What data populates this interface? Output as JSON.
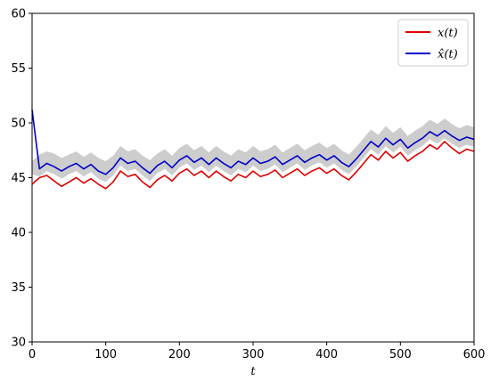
{
  "chart_data": {
    "type": "line",
    "title": "",
    "xlabel": "t",
    "ylabel": "",
    "xlim": [
      0,
      600
    ],
    "ylim": [
      30,
      60
    ],
    "xticks": [
      "0",
      "100",
      "200",
      "300",
      "400",
      "500",
      "600"
    ],
    "yticks": [
      "30",
      "35",
      "40",
      "45",
      "50",
      "55",
      "60"
    ],
    "grid": false,
    "legend_position": "top-right",
    "x": [
      0,
      10,
      20,
      30,
      40,
      50,
      60,
      70,
      80,
      90,
      100,
      110,
      120,
      130,
      140,
      150,
      160,
      170,
      180,
      190,
      200,
      210,
      220,
      230,
      240,
      250,
      260,
      270,
      280,
      290,
      300,
      310,
      320,
      330,
      340,
      350,
      360,
      370,
      380,
      390,
      400,
      410,
      420,
      430,
      440,
      450,
      460,
      470,
      480,
      490,
      500,
      510,
      520,
      530,
      540,
      550,
      560,
      570,
      580,
      590,
      600
    ],
    "series": [
      {
        "name": "x(t)",
        "color": "#e00000",
        "values": [
          44.4,
          45.0,
          45.2,
          44.7,
          44.2,
          44.6,
          45.0,
          44.5,
          44.9,
          44.4,
          44.0,
          44.6,
          45.6,
          45.1,
          45.3,
          44.6,
          44.1,
          44.8,
          45.2,
          44.7,
          45.4,
          45.8,
          45.2,
          45.6,
          45.0,
          45.6,
          45.1,
          44.7,
          45.3,
          45.0,
          45.6,
          45.1,
          45.3,
          45.7,
          45.0,
          45.4,
          45.8,
          45.2,
          45.6,
          45.9,
          45.4,
          45.8,
          45.2,
          44.8,
          45.5,
          46.3,
          47.1,
          46.6,
          47.4,
          46.8,
          47.3,
          46.5,
          47.0,
          47.4,
          48.0,
          47.6,
          48.3,
          47.7,
          47.2,
          47.6,
          47.4
        ]
      },
      {
        "name": "x̂(t)",
        "color": "#0000c8",
        "values": [
          51.2,
          45.8,
          46.3,
          46.0,
          45.6,
          46.0,
          46.3,
          45.8,
          46.2,
          45.6,
          45.3,
          45.9,
          46.8,
          46.3,
          46.5,
          45.9,
          45.4,
          46.1,
          46.5,
          45.9,
          46.6,
          47.0,
          46.4,
          46.8,
          46.2,
          46.8,
          46.3,
          45.9,
          46.5,
          46.2,
          46.8,
          46.3,
          46.5,
          46.9,
          46.2,
          46.6,
          47.0,
          46.4,
          46.8,
          47.1,
          46.6,
          47.0,
          46.4,
          46.0,
          46.7,
          47.5,
          48.3,
          47.8,
          48.6,
          48.0,
          48.5,
          47.7,
          48.2,
          48.6,
          49.2,
          48.8,
          49.3,
          48.8,
          48.4,
          48.7,
          48.5
        ]
      }
    ],
    "band": {
      "color": "#c8c8c8",
      "lower": [
        45.3,
        45.1,
        45.6,
        45.3,
        44.9,
        45.3,
        45.6,
        45.1,
        45.5,
        44.9,
        44.6,
        45.2,
        46.1,
        45.6,
        45.8,
        45.2,
        44.7,
        45.4,
        45.8,
        45.2,
        45.9,
        46.3,
        45.7,
        46.1,
        45.5,
        46.1,
        45.6,
        45.2,
        45.8,
        45.5,
        46.1,
        45.6,
        45.8,
        46.2,
        45.5,
        45.9,
        46.3,
        45.7,
        46.1,
        46.4,
        45.9,
        46.3,
        45.7,
        45.3,
        46.0,
        46.8,
        47.6,
        47.1,
        47.9,
        47.3,
        47.8,
        47.0,
        47.5,
        47.9,
        48.5,
        48.1,
        48.6,
        48.1,
        47.7,
        48.0,
        47.8
      ],
      "upper": [
        46.5,
        47.1,
        47.4,
        47.2,
        46.8,
        47.1,
        47.4,
        46.9,
        47.3,
        46.8,
        46.5,
        47.0,
        47.9,
        47.4,
        47.6,
        47.0,
        46.6,
        47.2,
        47.6,
        47.0,
        47.7,
        48.1,
        47.5,
        47.9,
        47.3,
        47.9,
        47.4,
        47.0,
        47.6,
        47.3,
        47.9,
        47.4,
        47.6,
        48.0,
        47.3,
        47.7,
        48.1,
        47.5,
        47.9,
        48.2,
        47.7,
        48.1,
        47.5,
        47.1,
        47.8,
        48.6,
        49.4,
        48.9,
        49.7,
        49.1,
        49.6,
        48.8,
        49.3,
        49.7,
        50.3,
        49.9,
        50.4,
        49.9,
        49.5,
        49.8,
        49.6
      ]
    }
  }
}
